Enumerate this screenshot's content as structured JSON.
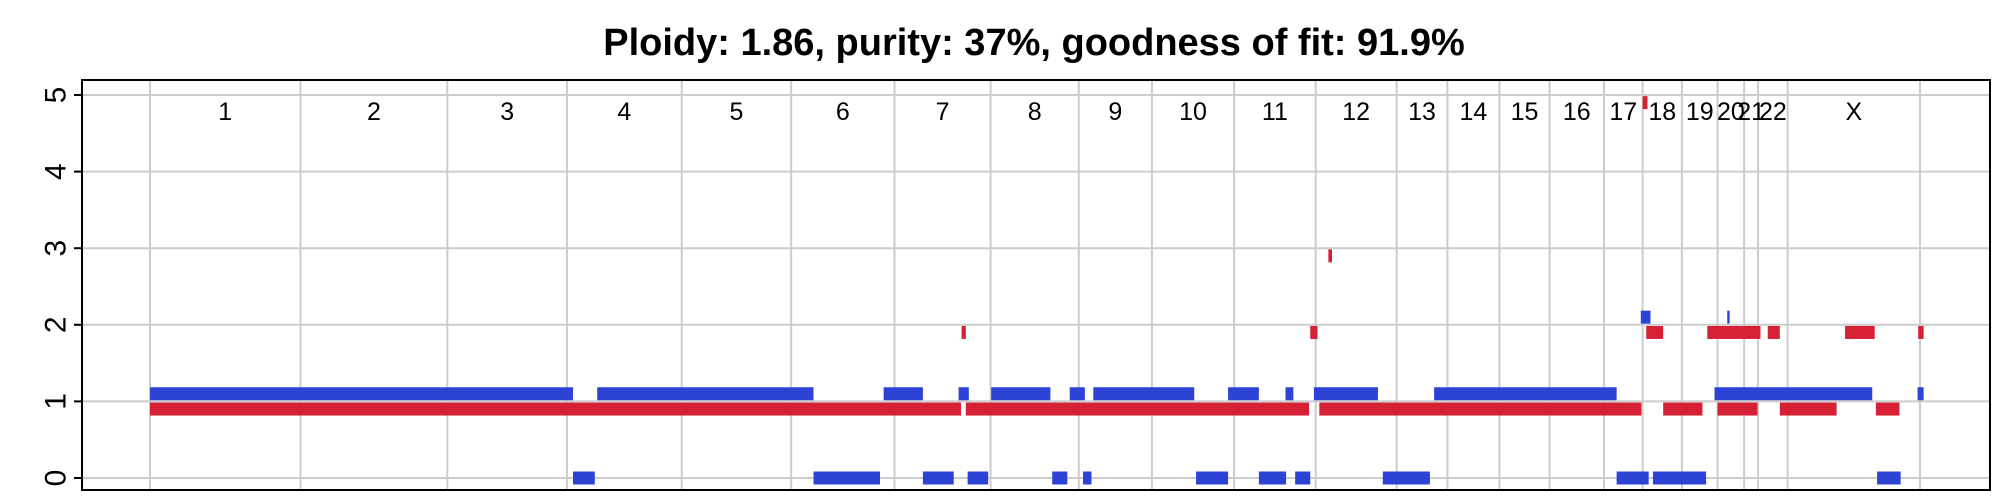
{
  "chart_data": {
    "type": "segment",
    "title": "Ploidy: 1.86, purity: 37%, goodness of fit: 91.9%",
    "xlabel": "",
    "ylabel": "",
    "ylim": [
      0,
      5
    ],
    "yticks": [
      0,
      1,
      2,
      3,
      4,
      5
    ],
    "grid": true,
    "colors": {
      "major": "#d62034",
      "minor": "#2c43d6",
      "grid": "#cccccc"
    },
    "chromosomes": [
      {
        "label": "1",
        "start": 0,
        "end": 249
      },
      {
        "label": "2",
        "start": 249,
        "end": 492
      },
      {
        "label": "3",
        "start": 492,
        "end": 690
      },
      {
        "label": "4",
        "start": 690,
        "end": 880
      },
      {
        "label": "5",
        "start": 880,
        "end": 1061
      },
      {
        "label": "6",
        "start": 1061,
        "end": 1232
      },
      {
        "label": "7",
        "start": 1232,
        "end": 1391
      },
      {
        "label": "8",
        "start": 1391,
        "end": 1537
      },
      {
        "label": "9",
        "start": 1537,
        "end": 1658
      },
      {
        "label": "10",
        "start": 1658,
        "end": 1794
      },
      {
        "label": "11",
        "start": 1794,
        "end": 1929
      },
      {
        "label": "12",
        "start": 1929,
        "end": 2063
      },
      {
        "label": "13",
        "start": 2063,
        "end": 2147
      },
      {
        "label": "14",
        "start": 2147,
        "end": 2233
      },
      {
        "label": "15",
        "start": 2233,
        "end": 2316
      },
      {
        "label": "16",
        "start": 2316,
        "end": 2406
      },
      {
        "label": "17",
        "start": 2406,
        "end": 2470
      },
      {
        "label": "18",
        "start": 2470,
        "end": 2535
      },
      {
        "label": "19",
        "start": 2535,
        "end": 2594
      },
      {
        "label": "20",
        "start": 2594,
        "end": 2638
      },
      {
        "label": "21",
        "start": 2638,
        "end": 2661
      },
      {
        "label": "22",
        "start": 2661,
        "end": 2710
      },
      {
        "label": "X",
        "start": 2710,
        "end": 2929
      }
    ],
    "series": [
      {
        "name": "major",
        "segments": [
          {
            "start": 0,
            "end": 1342,
            "value": 0.9
          },
          {
            "start": 1343,
            "end": 1350,
            "value": 1.9
          },
          {
            "start": 1350,
            "end": 1918,
            "value": 0.9
          },
          {
            "start": 1920,
            "end": 1932,
            "value": 1.9
          },
          {
            "start": 1950,
            "end": 1956,
            "value": 2.9
          },
          {
            "start": 1935,
            "end": 2468,
            "value": 0.9
          },
          {
            "start": 2470,
            "end": 2478,
            "value": 4.9
          },
          {
            "start": 2476,
            "end": 2504,
            "value": 1.9
          },
          {
            "start": 2504,
            "end": 2569,
            "value": 0.9
          },
          {
            "start": 2577,
            "end": 2665,
            "value": 1.9
          },
          {
            "start": 2594,
            "end": 2660,
            "value": 0.9
          },
          {
            "start": 2677,
            "end": 2697,
            "value": 1.9
          },
          {
            "start": 2697,
            "end": 2791,
            "value": 0.9
          },
          {
            "start": 2805,
            "end": 2854,
            "value": 1.9
          },
          {
            "start": 2856,
            "end": 2895,
            "value": 0.9
          },
          {
            "start": 2926,
            "end": 2935,
            "value": 1.9
          }
        ]
      },
      {
        "name": "minor",
        "segments": [
          {
            "start": 0,
            "end": 700,
            "value": 1.1
          },
          {
            "start": 700,
            "end": 736,
            "value": 0.0
          },
          {
            "start": 740,
            "end": 1098,
            "value": 1.1
          },
          {
            "start": 1098,
            "end": 1208,
            "value": 0.0
          },
          {
            "start": 1214,
            "end": 1279,
            "value": 1.1
          },
          {
            "start": 1279,
            "end": 1330,
            "value": 0.0
          },
          {
            "start": 1338,
            "end": 1355,
            "value": 1.1
          },
          {
            "start": 1353,
            "end": 1387,
            "value": 0.0
          },
          {
            "start": 1392,
            "end": 1490,
            "value": 1.1
          },
          {
            "start": 1493,
            "end": 1518,
            "value": 0.0
          },
          {
            "start": 1522,
            "end": 1547,
            "value": 1.1
          },
          {
            "start": 1544,
            "end": 1558,
            "value": 0.0
          },
          {
            "start": 1561,
            "end": 1728,
            "value": 1.1
          },
          {
            "start": 1731,
            "end": 1784,
            "value": 0.0
          },
          {
            "start": 1784,
            "end": 1835,
            "value": 1.1
          },
          {
            "start": 1835,
            "end": 1880,
            "value": 0.0
          },
          {
            "start": 1879,
            "end": 1892,
            "value": 1.1
          },
          {
            "start": 1895,
            "end": 1920,
            "value": 0.0
          },
          {
            "start": 1926,
            "end": 2032,
            "value": 1.1
          },
          {
            "start": 2040,
            "end": 2118,
            "value": 0.0
          },
          {
            "start": 2125,
            "end": 2427,
            "value": 1.1
          },
          {
            "start": 2427,
            "end": 2480,
            "value": 0.0
          },
          {
            "start": 2467,
            "end": 2483,
            "value": 2.1
          },
          {
            "start": 2487,
            "end": 2575,
            "value": 0.0
          },
          {
            "start": 2589,
            "end": 2850,
            "value": 1.1
          },
          {
            "start": 2610,
            "end": 2614,
            "value": 2.1
          },
          {
            "start": 2858,
            "end": 2897,
            "value": 0.0
          },
          {
            "start": 2925,
            "end": 2935,
            "value": 1.1
          }
        ]
      }
    ]
  }
}
